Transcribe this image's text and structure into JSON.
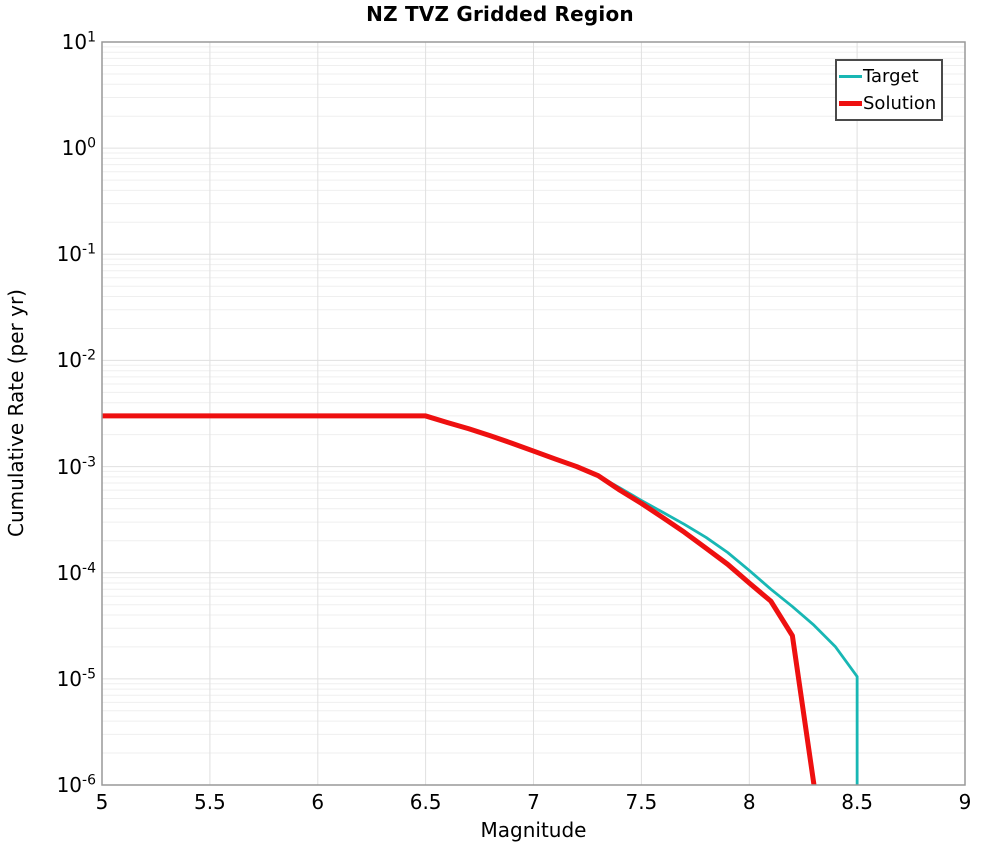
{
  "frame": {
    "spine_color": "#999999"
  },
  "chart_data": {
    "type": "line",
    "title": "NZ TVZ Gridded Region",
    "xlabel": "Magnitude",
    "ylabel": "Cumulative Rate (per yr)",
    "grid": {
      "major_color": "#e0e0e0",
      "minor_color": "#efefef",
      "show": true
    },
    "legend": {
      "position": "top-right"
    },
    "x_axis": {
      "min": 5,
      "max": 9,
      "ticks": [
        5,
        5.5,
        6,
        6.5,
        7,
        7.5,
        8,
        8.5,
        9
      ],
      "tick_labels": [
        "5",
        "5.5",
        "6",
        "6.5",
        "7",
        "7.5",
        "8",
        "8.5",
        "9"
      ]
    },
    "y_axis": {
      "scale": "log",
      "min_exp": -6,
      "max_exp": 1,
      "tick_exponents": [
        1,
        0,
        -1,
        -2,
        -3,
        -4,
        -5,
        -6
      ]
    },
    "series": [
      {
        "name": "Target",
        "color": "#18b7b4",
        "line_width": 2.8,
        "points": [
          [
            5.0,
            0.003
          ],
          [
            6.5,
            0.003
          ],
          [
            6.6,
            0.0026
          ],
          [
            6.7,
            0.00227
          ],
          [
            6.8,
            0.00195
          ],
          [
            6.9,
            0.00166
          ],
          [
            7.0,
            0.0014
          ],
          [
            7.1,
            0.00118
          ],
          [
            7.2,
            0.001
          ],
          [
            7.3,
            0.00082
          ],
          [
            7.4,
            0.00063
          ],
          [
            7.5,
            0.00048
          ],
          [
            7.6,
            0.00037
          ],
          [
            7.7,
            0.000285
          ],
          [
            7.8,
            0.000215
          ],
          [
            7.9,
            0.000155
          ],
          [
            8.0,
            0.000105
          ],
          [
            8.1,
            7e-05
          ],
          [
            8.2,
            4.8e-05
          ],
          [
            8.3,
            3.2e-05
          ],
          [
            8.4,
            2e-05
          ],
          [
            8.5,
            1.05e-05
          ],
          [
            8.5,
            1e-07
          ]
        ]
      },
      {
        "name": "Solution",
        "color": "#ee1010",
        "line_width": 5,
        "points": [
          [
            5.0,
            0.003
          ],
          [
            6.5,
            0.003
          ],
          [
            6.6,
            0.0026
          ],
          [
            6.7,
            0.00227
          ],
          [
            6.8,
            0.00195
          ],
          [
            6.9,
            0.00166
          ],
          [
            7.0,
            0.0014
          ],
          [
            7.1,
            0.00118
          ],
          [
            7.2,
            0.001
          ],
          [
            7.3,
            0.00082
          ],
          [
            7.4,
            0.0006
          ],
          [
            7.5,
            0.00045
          ],
          [
            7.6,
            0.00033
          ],
          [
            7.7,
            0.00024
          ],
          [
            7.8,
            0.00017
          ],
          [
            7.9,
            0.00012
          ],
          [
            8.0,
            8e-05
          ],
          [
            8.1,
            5.4e-05
          ],
          [
            8.2,
            2.55e-05
          ],
          [
            8.3,
            1e-06
          ],
          [
            8.31,
            1e-07
          ]
        ]
      }
    ]
  }
}
